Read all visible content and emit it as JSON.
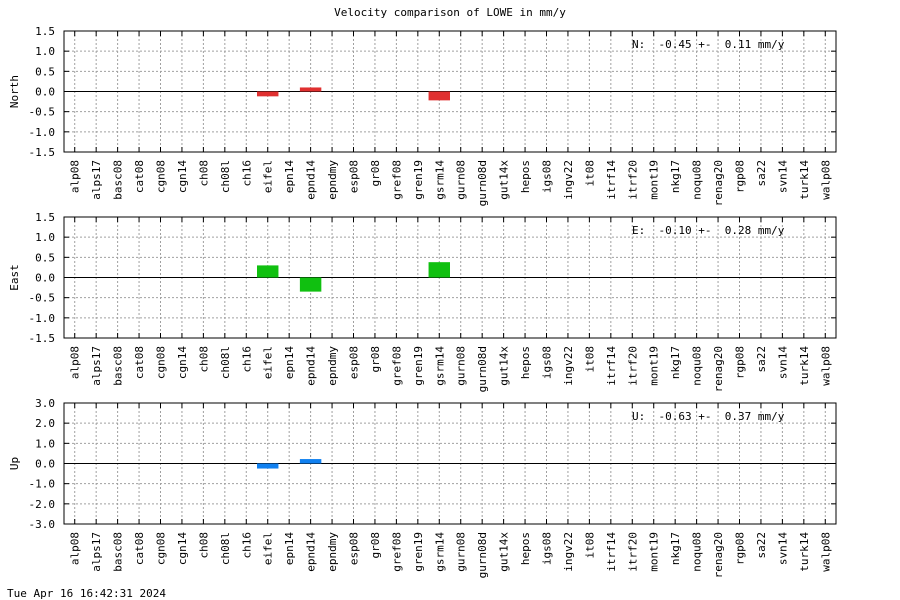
{
  "title": "Velocity comparison of LOWE in mm/y",
  "footer": "Tue Apr 16 16:42:31 2024",
  "chart_data": [
    {
      "type": "bar",
      "ylabel": "North",
      "ylim": [
        -1.5,
        1.5
      ],
      "yticks": [
        -1.5,
        -1.0,
        -0.5,
        0.0,
        0.5,
        1.0,
        1.5
      ],
      "ytick_labels": [
        "-1.5",
        "-1.0",
        "-0.5",
        "0.0",
        "0.5",
        "1.0",
        "1.5"
      ],
      "annotation": "N:  -0.45 +-  0.11 mm/y",
      "color": "#e03030",
      "grid": true,
      "categories": [
        "alp08",
        "alps17",
        "basc08",
        "cat08",
        "cgn08",
        "cgn14",
        "ch08",
        "ch08l",
        "ch16",
        "eifel",
        "epn14",
        "epnd14",
        "epndmy",
        "esp08",
        "gr08",
        "gref08",
        "gren19",
        "gsrm14",
        "gurn08",
        "gurn08d",
        "gut14x",
        "hepos",
        "igs08",
        "ingv22",
        "it08",
        "itrf14",
        "itrf20",
        "mont19",
        "nkg17",
        "noqu08",
        "renag20",
        "rgp08",
        "sa22",
        "svn14",
        "turk14",
        "walp08"
      ],
      "values": [
        null,
        null,
        null,
        null,
        null,
        null,
        null,
        null,
        null,
        -0.12,
        null,
        0.1,
        null,
        null,
        null,
        null,
        null,
        -0.22,
        null,
        null,
        null,
        null,
        null,
        null,
        null,
        null,
        null,
        null,
        null,
        null,
        null,
        null,
        null,
        null,
        null,
        null
      ]
    },
    {
      "type": "bar",
      "ylabel": "East",
      "ylim": [
        -1.5,
        1.5
      ],
      "yticks": [
        -1.5,
        -1.0,
        -0.5,
        0.0,
        0.5,
        1.0,
        1.5
      ],
      "ytick_labels": [
        "-1.5",
        "-1.0",
        "-0.5",
        "0.0",
        "0.5",
        "1.0",
        "1.5"
      ],
      "annotation": "E:  -0.10 +-  0.28 mm/y",
      "color": "#10c010",
      "grid": true,
      "categories": [
        "alp08",
        "alps17",
        "basc08",
        "cat08",
        "cgn08",
        "cgn14",
        "ch08",
        "ch08l",
        "ch16",
        "eifel",
        "epn14",
        "epnd14",
        "epndmy",
        "esp08",
        "gr08",
        "gref08",
        "gren19",
        "gsrm14",
        "gurn08",
        "gurn08d",
        "gut14x",
        "hepos",
        "igs08",
        "ingv22",
        "it08",
        "itrf14",
        "itrf20",
        "mont19",
        "nkg17",
        "noqu08",
        "renag20",
        "rgp08",
        "sa22",
        "svn14",
        "turk14",
        "walp08"
      ],
      "values": [
        null,
        null,
        null,
        null,
        null,
        null,
        null,
        null,
        null,
        0.3,
        null,
        -0.35,
        null,
        null,
        null,
        null,
        null,
        0.38,
        null,
        null,
        null,
        null,
        null,
        null,
        null,
        null,
        null,
        null,
        null,
        null,
        null,
        null,
        null,
        null,
        null,
        null
      ]
    },
    {
      "type": "bar",
      "ylabel": "Up",
      "ylim": [
        -3.0,
        3.0
      ],
      "yticks": [
        -3.0,
        -2.0,
        -1.0,
        0.0,
        1.0,
        2.0,
        3.0
      ],
      "ytick_labels": [
        "-3.0",
        "-2.0",
        "-1.0",
        "0.0",
        "1.0",
        "2.0",
        "3.0"
      ],
      "annotation": "U:  -0.63 +-  0.37 mm/y",
      "color": "#1080f0",
      "grid": true,
      "categories": [
        "alp08",
        "alps17",
        "basc08",
        "cat08",
        "cgn08",
        "cgn14",
        "ch08",
        "ch08l",
        "ch16",
        "eifel",
        "epn14",
        "epnd14",
        "epndmy",
        "esp08",
        "gr08",
        "gref08",
        "gren19",
        "gsrm14",
        "gurn08",
        "gurn08d",
        "gut14x",
        "hepos",
        "igs08",
        "ingv22",
        "it08",
        "itrf14",
        "itrf20",
        "mont19",
        "nkg17",
        "noqu08",
        "renag20",
        "rgp08",
        "sa22",
        "svn14",
        "turk14",
        "walp08"
      ],
      "values": [
        null,
        null,
        null,
        null,
        null,
        null,
        null,
        null,
        null,
        -0.25,
        null,
        0.22,
        null,
        null,
        null,
        null,
        null,
        null,
        null,
        null,
        null,
        null,
        null,
        null,
        null,
        null,
        null,
        null,
        null,
        null,
        null,
        null,
        null,
        null,
        null,
        null
      ]
    }
  ]
}
